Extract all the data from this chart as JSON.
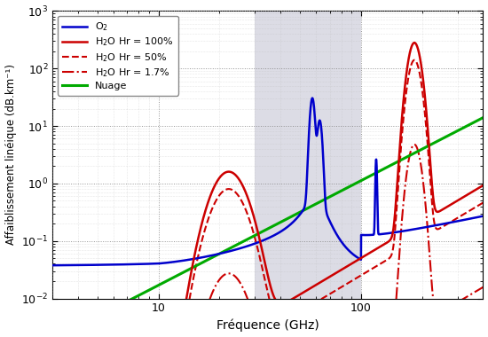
{
  "xlabel": "Fréquence (GHz)",
  "ylabel": "Affaiblissement linéique (dB.km⁻¹)",
  "xlim": [
    3,
    400
  ],
  "ylim": [
    0.01,
    1000
  ],
  "shaded_region": [
    30,
    100
  ],
  "shaded_color": "#c0c0d0",
  "shaded_alpha": 0.55,
  "legend_entries": [
    {
      "label": "O$_2$",
      "color": "#0000cc",
      "linestyle": "-",
      "linewidth": 1.8
    },
    {
      "label": "H$_2$O Hr = 100%",
      "color": "#cc0000",
      "linestyle": "-",
      "linewidth": 1.8
    },
    {
      "label": "H$_2$O Hr = 50%",
      "color": "#cc0000",
      "linestyle": "--",
      "linewidth": 1.5
    },
    {
      "label": "H$_2$O Hr = 1.7%",
      "color": "#cc0000",
      "linestyle": "-.",
      "linewidth": 1.5
    },
    {
      "label": "Nuage",
      "color": "#00aa00",
      "linestyle": "-",
      "linewidth": 2.2
    }
  ],
  "grid_major_color": "#888888",
  "grid_minor_color": "#bbbbbb",
  "background_color": "#ffffff",
  "figsize": [
    5.5,
    3.8
  ],
  "dpi": 100
}
